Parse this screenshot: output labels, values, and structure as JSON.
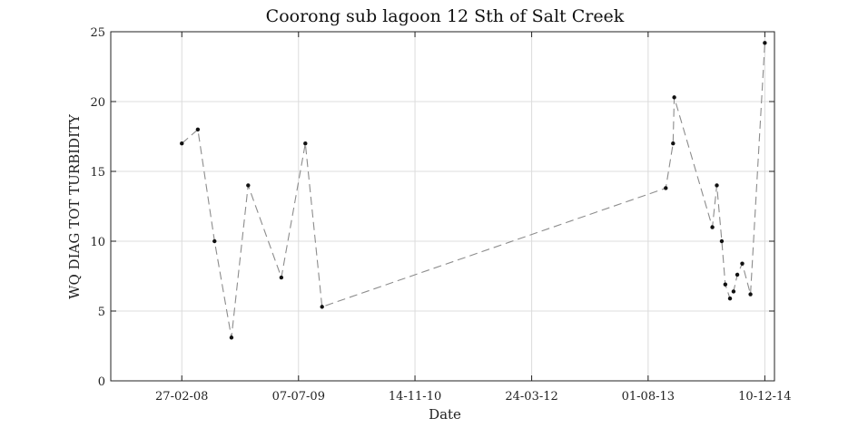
{
  "chart_data": {
    "type": "line",
    "title": "Coorong sub lagoon 12 Sth of Salt Creek",
    "xlabel": "Date",
    "ylabel": "WQ DIAG TOT TURBIDITY",
    "xlim": [
      "2007-05-01",
      "2015-01-20"
    ],
    "ylim": [
      0,
      25
    ],
    "x_ticks": [
      {
        "date": "2008-02-27",
        "label": "27-02-08"
      },
      {
        "date": "2009-07-07",
        "label": "07-07-09"
      },
      {
        "date": "2010-11-14",
        "label": "14-11-10"
      },
      {
        "date": "2012-03-24",
        "label": "24-03-12"
      },
      {
        "date": "2013-08-01",
        "label": "01-08-13"
      },
      {
        "date": "2014-12-10",
        "label": "10-12-14"
      }
    ],
    "y_ticks": [
      0,
      5,
      10,
      15,
      20,
      25
    ],
    "grid": true,
    "line_style": "dashed",
    "series": [
      {
        "color": "#8c8c8c",
        "marker_color": "#111111",
        "points": [
          {
            "x": "2008-02-27",
            "y": 17.0
          },
          {
            "x": "2008-05-05",
            "y": 18.0
          },
          {
            "x": "2008-07-15",
            "y": 10.0
          },
          {
            "x": "2008-09-25",
            "y": 3.1
          },
          {
            "x": "2008-12-05",
            "y": 14.0
          },
          {
            "x": "2009-04-25",
            "y": 7.4
          },
          {
            "x": "2009-08-05",
            "y": 17.0
          },
          {
            "x": "2009-10-15",
            "y": 5.3
          },
          {
            "x": "2013-10-15",
            "y": 13.8
          },
          {
            "x": "2013-11-15",
            "y": 17.0
          },
          {
            "x": "2013-11-20",
            "y": 20.3
          },
          {
            "x": "2014-05-01",
            "y": 11.0
          },
          {
            "x": "2014-05-20",
            "y": 14.0
          },
          {
            "x": "2014-06-10",
            "y": 10.0
          },
          {
            "x": "2014-06-25",
            "y": 6.9
          },
          {
            "x": "2014-07-15",
            "y": 5.9
          },
          {
            "x": "2014-07-30",
            "y": 6.4
          },
          {
            "x": "2014-08-15",
            "y": 7.6
          },
          {
            "x": "2014-09-05",
            "y": 8.4
          },
          {
            "x": "2014-10-10",
            "y": 6.2
          },
          {
            "x": "2014-12-10",
            "y": 24.2
          }
        ]
      }
    ]
  }
}
